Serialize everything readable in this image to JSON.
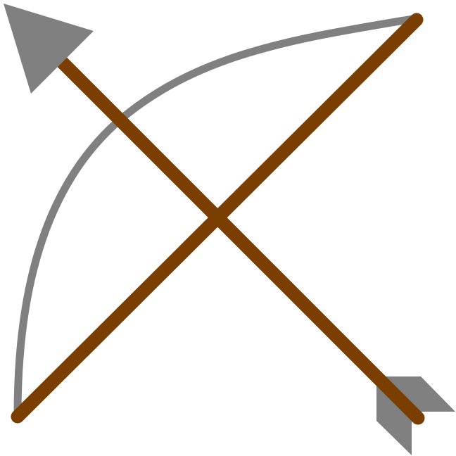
{
  "icon": {
    "name": "bow-and-arrow-icon",
    "colors": {
      "bow_limb": "#808080",
      "bow_string": "#7a3e00",
      "arrow_shaft": "#7a3e00",
      "arrowhead": "#808080",
      "fletching": "#808080",
      "background": "#ffffff"
    }
  }
}
